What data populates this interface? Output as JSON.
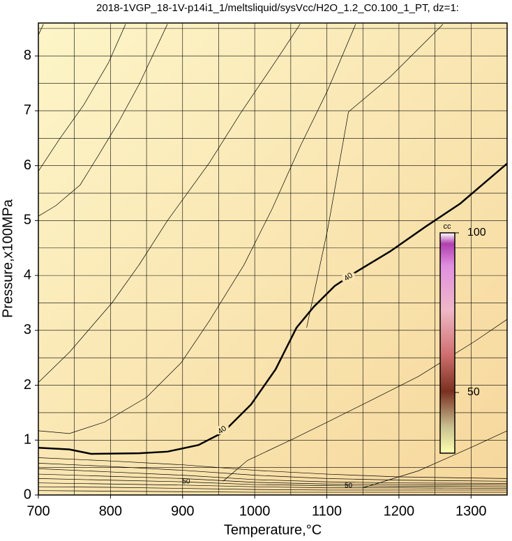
{
  "chart_data": {
    "type": "contour",
    "title": "2018-1VGP_18-1V-p14i1_1/meltsliquid/sysVcc/H2O_1.2_C0.100_1_PT, dz=1:",
    "xlabel": "Temperature,°C",
    "ylabel": "Pressure,x100MPa",
    "xlim": [
      700,
      1350
    ],
    "ylim": [
      0,
      8.6
    ],
    "xticks": [
      700,
      800,
      900,
      1000,
      1100,
      1200,
      1300
    ],
    "yticks": [
      0,
      1,
      2,
      3,
      4,
      5,
      6,
      7,
      8
    ],
    "xgrid": [
      700,
      750,
      800,
      850,
      900,
      950,
      1000,
      1050,
      1100,
      1150,
      1200,
      1250,
      1300,
      1350
    ],
    "ygrid": [
      0,
      0.5,
      1,
      1.5,
      2,
      2.5,
      3,
      3.5,
      4,
      4.5,
      5,
      5.5,
      6,
      6.5,
      7,
      7.5,
      8,
      8.5
    ],
    "grid": true,
    "line_color": "#000000",
    "contours": [
      {
        "level": 40,
        "bold": true,
        "x": [
          700,
          743,
          773,
          840,
          879,
          922,
          956,
          995,
          1029,
          1058,
          1082,
          1111,
          1140,
          1188,
          1237,
          1285,
          1350
        ],
        "y": [
          0.86,
          0.83,
          0.75,
          0.76,
          0.79,
          0.91,
          1.14,
          1.65,
          2.29,
          3.05,
          3.43,
          3.81,
          4.06,
          4.44,
          4.89,
          5.31,
          6.04
        ],
        "labels": [
          {
            "x": 1130,
            "y": 3.97
          },
          {
            "x": 955,
            "y": 1.18
          }
        ]
      },
      {
        "x": [
          700,
          743,
          802,
          840,
          879,
          937,
          980,
          1034,
          1063
        ],
        "y": [
          2.05,
          2.6,
          3.5,
          4.2,
          5.0,
          6.05,
          6.95,
          8.0,
          8.58
        ]
      },
      {
        "x": [
          700,
          724,
          758,
          782,
          811,
          840,
          879
        ],
        "y": [
          5.08,
          5.27,
          5.65,
          6.16,
          6.79,
          7.49,
          8.58
        ]
      },
      {
        "x": [
          700,
          729,
          763,
          797,
          821
        ],
        "y": [
          5.9,
          6.48,
          7.11,
          7.87,
          8.58
        ]
      },
      {
        "x": [
          700,
          707
        ],
        "y": [
          8.38,
          8.58
        ]
      },
      {
        "x": [
          700,
          743,
          792,
          850,
          898,
          937,
          985,
          1024,
          1063,
          1101,
          1140
        ],
        "y": [
          1.17,
          1.12,
          1.33,
          1.78,
          2.41,
          3.17,
          4.19,
          5.21,
          6.35,
          7.37,
          8.58
        ]
      },
      {
        "x": [
          956,
          990,
          1053,
          1101,
          1159,
          1227,
          1304,
          1350
        ],
        "y": [
          0.25,
          0.63,
          1.02,
          1.33,
          1.71,
          2.16,
          2.79,
          3.2
        ]
      },
      {
        "x": [
          1072,
          1101,
          1130,
          1188,
          1256,
          1261
        ],
        "y": [
          3.05,
          4.83,
          6.98,
          7.62,
          8.51,
          8.58
        ]
      },
      {
        "x": [
          1150,
          1227,
          1304,
          1350
        ],
        "y": [
          0.13,
          0.44,
          0.89,
          1.17
        ]
      },
      {
        "x": [
          700,
          800,
          900,
          1000,
          1100,
          1200,
          1350
        ],
        "y": [
          0.68,
          0.62,
          0.55,
          0.45,
          0.38,
          0.33,
          0.3
        ]
      },
      {
        "x": [
          700,
          800,
          900,
          1000,
          1100,
          1200,
          1350
        ],
        "y": [
          0.58,
          0.52,
          0.45,
          0.36,
          0.3,
          0.27,
          0.25
        ]
      },
      {
        "x": [
          700,
          800,
          900,
          1000,
          1100,
          1200,
          1350
        ],
        "y": [
          0.48,
          0.42,
          0.36,
          0.28,
          0.24,
          0.22,
          0.21
        ]
      },
      {
        "x": [
          700,
          800,
          900,
          1000,
          1100,
          1200,
          1350
        ],
        "y": [
          0.38,
          0.34,
          0.3,
          0.23,
          0.2,
          0.19,
          0.18
        ]
      },
      {
        "x": [
          700,
          800,
          900,
          1000,
          1100,
          1200,
          1350
        ],
        "y": [
          0.3,
          0.27,
          0.24,
          0.19,
          0.17,
          0.16,
          0.15
        ]
      },
      {
        "x": [
          700,
          800,
          900,
          1000,
          1100,
          1200,
          1350
        ],
        "y": [
          0.22,
          0.2,
          0.18,
          0.15,
          0.13,
          0.13,
          0.12
        ]
      },
      {
        "x": [
          700,
          800,
          900,
          1000,
          1100,
          1200,
          1350
        ],
        "y": [
          0.15,
          0.14,
          0.12,
          0.1,
          0.09,
          0.09,
          0.09
        ]
      },
      {
        "x": [
          700,
          800,
          900,
          1000,
          1100,
          1200,
          1350
        ],
        "y": [
          0.08,
          0.07,
          0.06,
          0.05,
          0.05,
          0.05,
          0.05
        ]
      }
    ],
    "annotations": [
      {
        "text": "50",
        "x": 905,
        "y": 0.24
      },
      {
        "text": "50",
        "x": 1130,
        "y": 0.17
      }
    ],
    "colorbar": {
      "label": "cc",
      "lim": [
        31,
        100
      ],
      "ticks": [
        50,
        100
      ]
    }
  }
}
